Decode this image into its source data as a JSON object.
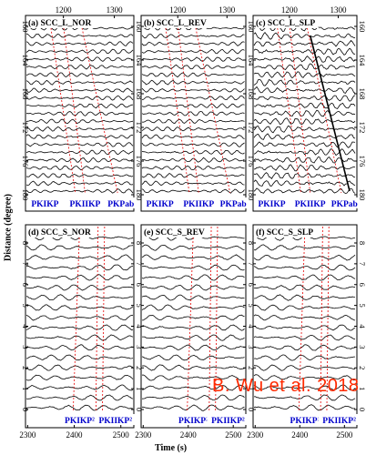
{
  "figure": {
    "ylabel": "Distance (degree)",
    "xlabel": "Time (s)",
    "watermark": "B. Wu et al. 2018",
    "panels": [
      {
        "id": "a",
        "label": "(a) SCC_L_NOR",
        "phases": [
          "PKIKP",
          "PKIIKP",
          "PKPab"
        ],
        "row": 0,
        "col": 0
      },
      {
        "id": "b",
        "label": "(b) SCC_L_REV",
        "phases": [
          "PKIKP",
          "PKIIKP",
          "PKPab"
        ],
        "row": 0,
        "col": 1
      },
      {
        "id": "c",
        "label": "(c) SCC_L_SLP",
        "phases": [
          "PKIKP",
          "PKIIKP",
          "PKPab"
        ],
        "row": 0,
        "col": 2
      },
      {
        "id": "d",
        "label": "(d) SCC_S_NOR",
        "phases": [
          "PKIKP²",
          "PKIIKP²"
        ],
        "row": 1,
        "col": 0
      },
      {
        "id": "e",
        "label": "(e) SCC_S_REV",
        "phases": [
          "PKIKP²",
          "PKIIKP²"
        ],
        "row": 1,
        "col": 1
      },
      {
        "id": "f",
        "label": "(f) SCC_S_SLP",
        "phases": [
          "PKIKP²",
          "PKIIKP²"
        ],
        "row": 1,
        "col": 2
      }
    ],
    "top_axis": {
      "ticks": [
        "1200",
        "1300"
      ],
      "right_ticks": [
        "160",
        "164",
        "168",
        "172",
        "176",
        "180"
      ]
    },
    "bottom_axis": {
      "ticks": [
        "2300",
        "2400",
        "2500"
      ],
      "right_ticks": [
        "0",
        "1",
        "2",
        "3",
        "4",
        "5",
        "6",
        "7",
        "8"
      ]
    },
    "colors": {
      "trace": "#000000",
      "phase_line": "#e60000",
      "phase_label": "#0000cc"
    }
  }
}
